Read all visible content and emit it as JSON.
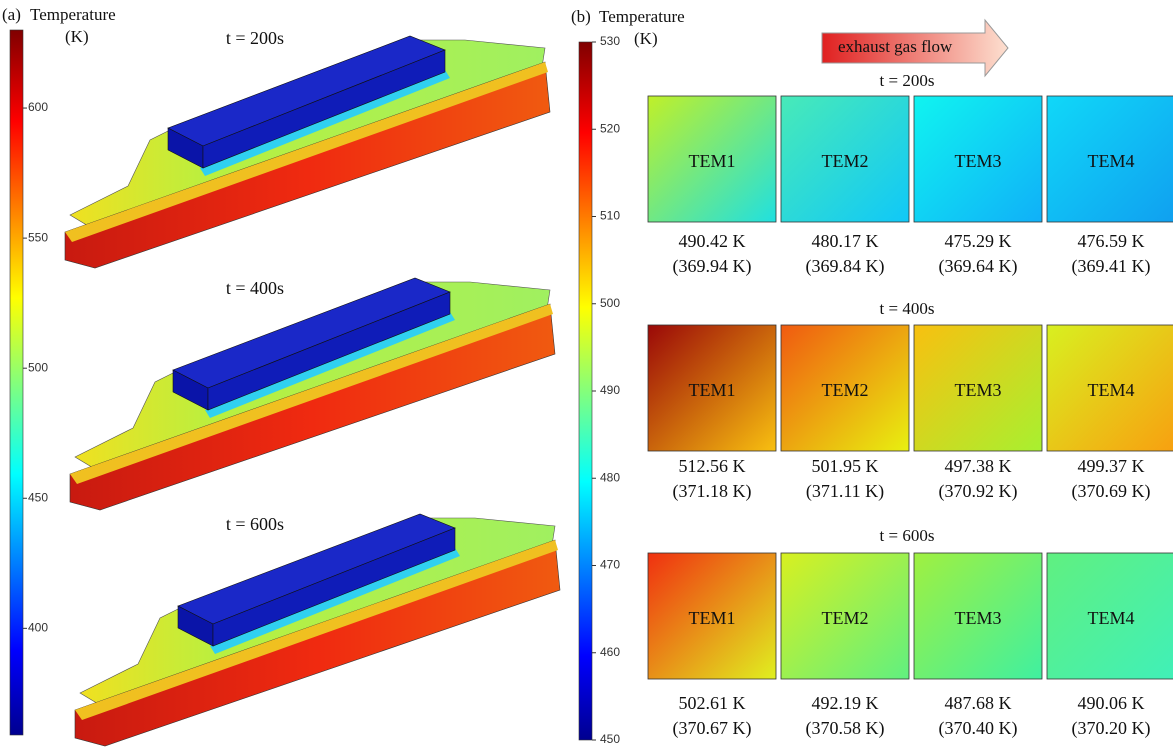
{
  "panel_a": {
    "label": "(a)",
    "colorbar": {
      "title": "Temperature",
      "unit": "(K)",
      "range": [
        359,
        630
      ],
      "ticks": [
        400,
        450,
        500,
        550,
        600
      ]
    },
    "snapshots": [
      "t = 200s",
      "t = 400s",
      "t = 600s"
    ]
  },
  "panel_b": {
    "label": "(b)",
    "colorbar": {
      "title": "Temperature",
      "unit": "(K)",
      "range": [
        450,
        530
      ],
      "ticks": [
        450,
        460,
        470,
        480,
        490,
        500,
        510,
        520,
        530
      ]
    },
    "flow_label": "exhaust gas flow",
    "rows": [
      {
        "time": "t = 200s",
        "tiles": [
          {
            "name": "TEM1",
            "temp": "490.42 K",
            "sub": "(369.94 K)",
            "gradient": [
              "#c0f028",
              "#20e0e0"
            ]
          },
          {
            "name": "TEM2",
            "temp": "480.17 K",
            "sub": "(369.84 K)",
            "gradient": [
              "#48eab8",
              "#10c8f8"
            ]
          },
          {
            "name": "TEM3",
            "temp": "475.29 K",
            "sub": "(369.64 K)",
            "gradient": [
              "#10f4f0",
              "#10b0f8"
            ]
          },
          {
            "name": "TEM4",
            "temp": "476.59 K",
            "sub": "(369.41 K)",
            "gradient": [
              "#10d8f8",
              "#10a0f0"
            ]
          }
        ]
      },
      {
        "time": "t = 400s",
        "tiles": [
          {
            "name": "TEM1",
            "temp": "512.56 K",
            "sub": "(371.18 K)",
            "gradient": [
              "#9a0808",
              "#f8c010"
            ]
          },
          {
            "name": "TEM2",
            "temp": "501.95 K",
            "sub": "(371.11 K)",
            "gradient": [
              "#f05a10",
              "#e8f010"
            ]
          },
          {
            "name": "TEM3",
            "temp": "497.38 K",
            "sub": "(370.92 K)",
            "gradient": [
              "#f8c010",
              "#a8f030"
            ]
          },
          {
            "name": "TEM4",
            "temp": "499.37 K",
            "sub": "(370.69 K)",
            "gradient": [
              "#d8f020",
              "#f8a010"
            ]
          }
        ]
      },
      {
        "time": "t = 600s",
        "tiles": [
          {
            "name": "TEM1",
            "temp": "502.61 K",
            "sub": "(370.67 K)",
            "gradient": [
              "#f03010",
              "#e0f020"
            ]
          },
          {
            "name": "TEM2",
            "temp": "492.19 K",
            "sub": "(370.58 K)",
            "gradient": [
              "#d8f020",
              "#60f080"
            ]
          },
          {
            "name": "TEM3",
            "temp": "487.68 K",
            "sub": "(370.40 K)",
            "gradient": [
              "#a0f040",
              "#40f0a0"
            ]
          },
          {
            "name": "TEM4",
            "temp": "490.06 K",
            "sub": "(370.20 K)",
            "gradient": [
              "#60f080",
              "#40f0b8"
            ]
          }
        ]
      }
    ]
  }
}
